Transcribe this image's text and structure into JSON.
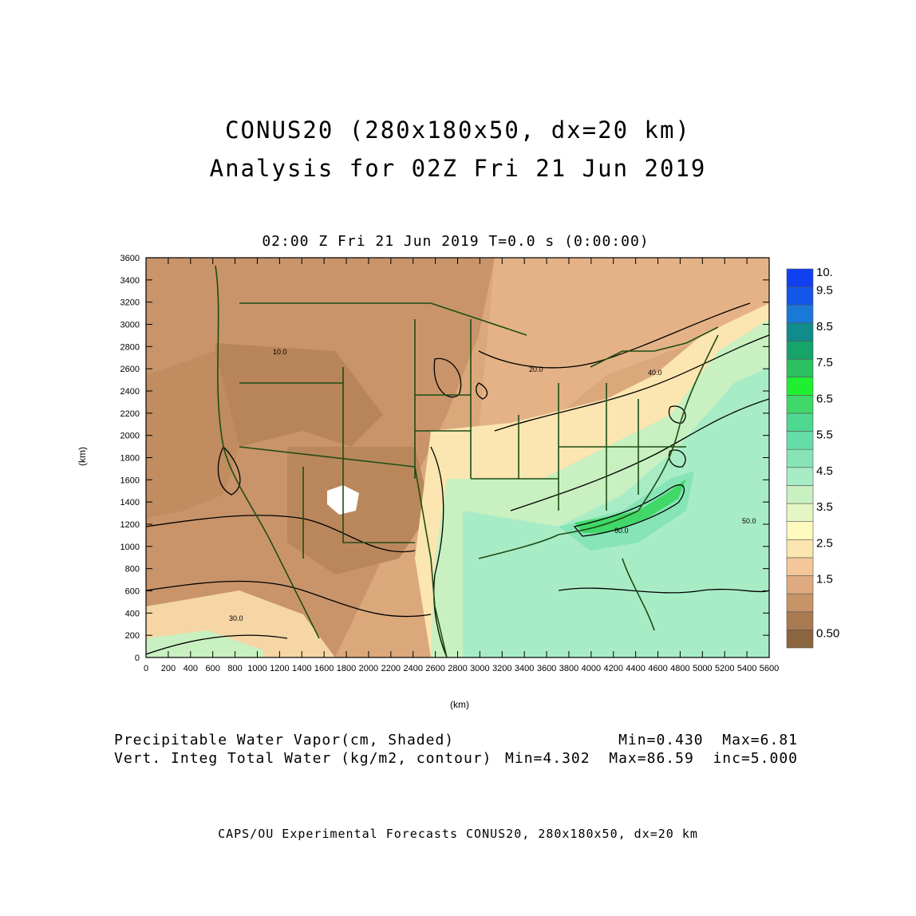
{
  "header": {
    "title_line1": "CONUS20 (280x180x50, dx=20 km)",
    "title_line2": "Analysis for 02Z Fri 21 Jun 2019",
    "valid_time": "02:00 Z Fri 21 Jun 2019    T=0.0 s (0:00:00)"
  },
  "axes": {
    "x_label": "(km)",
    "y_label": "(km)",
    "x_ticks": [
      "0",
      "200",
      "400",
      "600",
      "800",
      "1000",
      "1200",
      "1400",
      "1600",
      "1800",
      "2000",
      "2200",
      "2400",
      "2600",
      "2800",
      "3000",
      "3200",
      "3400",
      "3600",
      "3800",
      "4000",
      "4200",
      "4400",
      "4600",
      "4800",
      "5000",
      "5200",
      "5400",
      "5600"
    ],
    "y_ticks": [
      "0",
      "200",
      "400",
      "600",
      "800",
      "1000",
      "1200",
      "1400",
      "1600",
      "1800",
      "2000",
      "2200",
      "2400",
      "2600",
      "2800",
      "3000",
      "3200",
      "3400",
      "3600"
    ],
    "x_range_km": [
      0,
      5600
    ],
    "y_range_km": [
      0,
      3600
    ]
  },
  "colorbar": {
    "labels": [
      "10.",
      "9.5",
      "8.5",
      "7.5",
      "6.5",
      "5.5",
      "4.5",
      "3.5",
      "2.5",
      "1.5",
      "0.50"
    ],
    "colors": [
      "#8a6540",
      "#a87a52",
      "#c79468",
      "#e0aa80",
      "#f3c79a",
      "#fbe5b0",
      "#fffac0",
      "#e6f5c4",
      "#c8f0c0",
      "#a8ecc6",
      "#86e4b6",
      "#66dca8",
      "#4fd890",
      "#40d868",
      "#20ee30",
      "#2cc060",
      "#16a46a",
      "#108c8c",
      "#1a78d8",
      "#1456e8",
      "#1040f0"
    ]
  },
  "contour_labels": [
    "10.0",
    "20.0",
    "30.0",
    "40.0",
    "50.0",
    "60.0"
  ],
  "footer": {
    "shaded_field": "Precipitable Water Vapor(cm, Shaded)",
    "shaded_stats": "Min=0.430  Max=6.81",
    "contour_field": "Vert. Integ Total Water (kg/m2, contour)",
    "contour_stats": "Min=4.302  Max=86.59  inc=5.000"
  },
  "credits": "CAPS/OU Experimental Forecasts  CONUS20, 280x180x50, dx=20 km"
}
